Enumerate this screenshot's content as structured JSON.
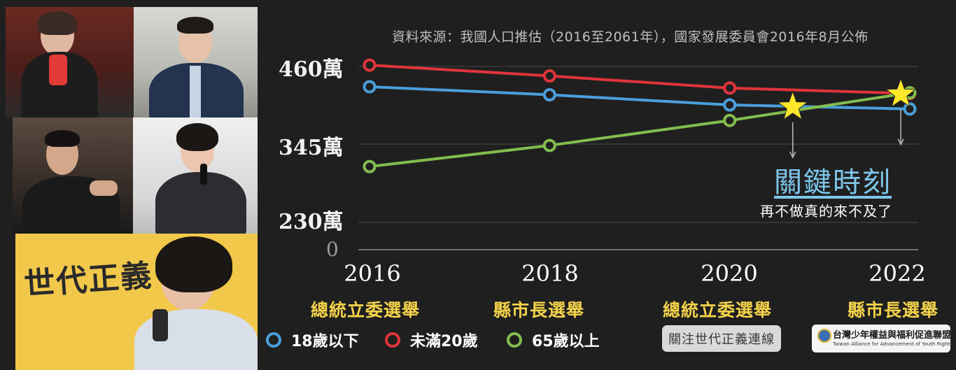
{
  "source_note": "資料來源：我國人口推估（2016至2061年），國家發展委員會2016年8月公佈",
  "chart_data": {
    "type": "line",
    "x": [
      2016,
      2018,
      2020,
      2022
    ],
    "x_labels": [
      "2016",
      "2018",
      "2020",
      "2022"
    ],
    "x_captions": [
      "總統立委選舉",
      "縣市長選舉",
      "總統立委選舉",
      "縣市長選舉"
    ],
    "y_tick_labels": [
      "460萬",
      "345萬",
      "230萬",
      "0"
    ],
    "series": [
      {
        "name": "18歲以下",
        "color": "#4a9fdc",
        "points": [
          [
            2016,
            430
          ],
          [
            2018,
            418
          ],
          [
            2020,
            403
          ],
          [
            2022,
            397
          ]
        ]
      },
      {
        "name": "未滿20歲",
        "color": "#e0343a",
        "points": [
          [
            2016,
            462
          ],
          [
            2018,
            446
          ],
          [
            2020,
            428
          ],
          [
            2022,
            420
          ]
        ]
      },
      {
        "name": "65歲以上",
        "color": "#82bd4e",
        "points": [
          [
            2016,
            312
          ],
          [
            2018,
            343
          ],
          [
            2020,
            380
          ],
          [
            2022,
            421
          ]
        ]
      }
    ],
    "highlights": [
      {
        "x": 2020.7,
        "y": 400
      },
      {
        "x": 2021.9,
        "y": 419
      }
    ],
    "highlight_color": "#ffe82a",
    "annotation_title": "關鍵時刻",
    "annotation_subtitle": "再不做真的來不及了",
    "grid": true
  },
  "legend": [
    {
      "label": "18歲以下",
      "color": "#4a9fdc"
    },
    {
      "label": "未滿20歲",
      "color": "#e0343a"
    },
    {
      "label": "65歲以上",
      "color": "#82bd4e"
    }
  ],
  "follow_button": "關注世代正義連線",
  "org_logo": {
    "zh": "台灣少年權益與福利促進聯盟",
    "en": "Taiwan Alliance for Advancement of Youth Rights and Welfare"
  },
  "banner_text": "世代正義"
}
